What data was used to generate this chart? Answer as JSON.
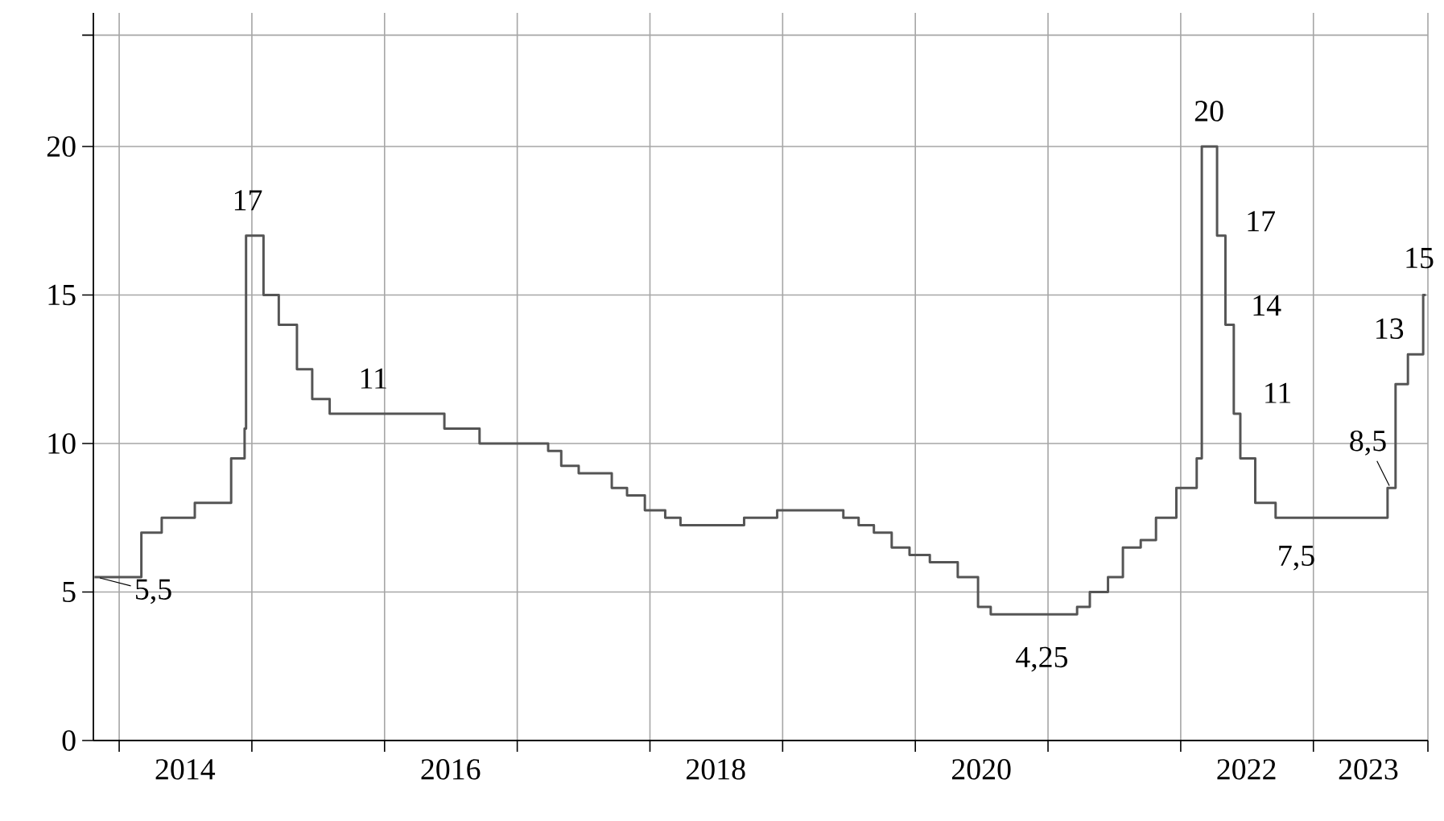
{
  "chart_data": {
    "type": "step",
    "x": [
      "2013-10-25",
      "2014-03-03",
      "2014-04-28",
      "2014-07-28",
      "2014-11-05",
      "2014-12-12",
      "2014-12-16",
      "2015-02-02",
      "2015-03-16",
      "2015-05-05",
      "2015-06-16",
      "2015-08-03",
      "2016-06-14",
      "2016-09-19",
      "2017-03-27",
      "2017-05-02",
      "2017-06-19",
      "2017-09-18",
      "2017-10-30",
      "2017-12-18",
      "2018-02-12",
      "2018-03-26",
      "2018-09-17",
      "2018-12-17",
      "2019-06-17",
      "2019-07-29",
      "2019-09-09",
      "2019-10-28",
      "2019-12-16",
      "2020-02-10",
      "2020-04-27",
      "2020-06-22",
      "2020-07-27",
      "2021-03-22",
      "2021-04-26",
      "2021-06-15",
      "2021-07-26",
      "2021-09-13",
      "2021-10-25",
      "2021-12-20",
      "2022-02-14",
      "2022-02-28",
      "2022-04-11",
      "2022-05-04",
      "2022-05-27",
      "2022-06-14",
      "2022-07-25",
      "2022-09-19",
      "2023-07-24",
      "2023-08-15",
      "2023-09-18",
      "2023-10-30",
      "2023-11-06"
    ],
    "series": [
      {
        "color": "#555555",
        "values": [
          5.5,
          7,
          7.5,
          8,
          9.5,
          10.5,
          17,
          15,
          14,
          12.5,
          11.5,
          11,
          10.5,
          10,
          9.75,
          9.25,
          9,
          8.5,
          8.25,
          7.75,
          7.5,
          7.25,
          7.5,
          7.75,
          7.5,
          7.25,
          7,
          6.5,
          6.25,
          6,
          5.5,
          4.5,
          4.25,
          4.5,
          5,
          5.5,
          6.5,
          6.75,
          7.5,
          8.5,
          9.5,
          20,
          17,
          14,
          11,
          9.5,
          8,
          7.5,
          8.5,
          12,
          13,
          15,
          15
        ]
      }
    ],
    "xlim": [
      "2013-10-22",
      "2023-11-12"
    ],
    "xticks": [
      {
        "value": "2014-01-01",
        "label": null
      },
      {
        "value": "2015-01-01",
        "label": null
      },
      {
        "value": "2016-01-01",
        "label": null
      },
      {
        "value": "2017-01-01",
        "label": null
      },
      {
        "value": "2018-01-01",
        "label": null
      },
      {
        "value": "2019-01-01",
        "label": null
      },
      {
        "value": "2020-01-01",
        "label": null
      },
      {
        "value": "2021-01-01",
        "label": null
      },
      {
        "value": "2022-01-01",
        "label": null
      },
      {
        "value": "2023-01-01",
        "label": null
      },
      {
        "value": "2023-11-12",
        "label": null
      },
      {
        "value": "2014-07-01",
        "label": "2014"
      },
      {
        "value": "2016-07-01",
        "label": "2016"
      },
      {
        "value": "2018-07-01",
        "label": "2018"
      },
      {
        "value": "2020-07-01",
        "label": "2020"
      },
      {
        "value": "2022-07-01",
        "label": "2022"
      },
      {
        "value": "2023-06-01",
        "label": "2023"
      }
    ],
    "ylim": [
      0,
      24.5
    ],
    "yticks": [
      0,
      5,
      10,
      15,
      20,
      {
        "value": 23.75,
        "label": null
      }
    ],
    "grid": true,
    "annotations": [
      {
        "text": "5,5",
        "x": "2013-11-01",
        "y": 5.5
      },
      {
        "text": "17",
        "x": "2014-12-20",
        "y": 17
      },
      {
        "text": "11",
        "x": "2015-12-01",
        "y": 11
      },
      {
        "text": "4,25",
        "x": "2020-12-15",
        "y": 4.25
      },
      {
        "text": "20",
        "x": "2022-03-20",
        "y": 20
      },
      {
        "text": "17",
        "x": "2022-04-20",
        "y": 17
      },
      {
        "text": "14",
        "x": "2022-05-10",
        "y": 14
      },
      {
        "text": "11",
        "x": "2022-06-01",
        "y": 11
      },
      {
        "text": "7,5",
        "x": "2022-11-15",
        "y": 7.5
      },
      {
        "text": "8,5",
        "x": "2023-08-01",
        "y": 8.5
      },
      {
        "text": "13",
        "x": "2023-09-28",
        "y": 13
      },
      {
        "text": "15",
        "x": "2023-11-01",
        "y": 15
      }
    ]
  }
}
